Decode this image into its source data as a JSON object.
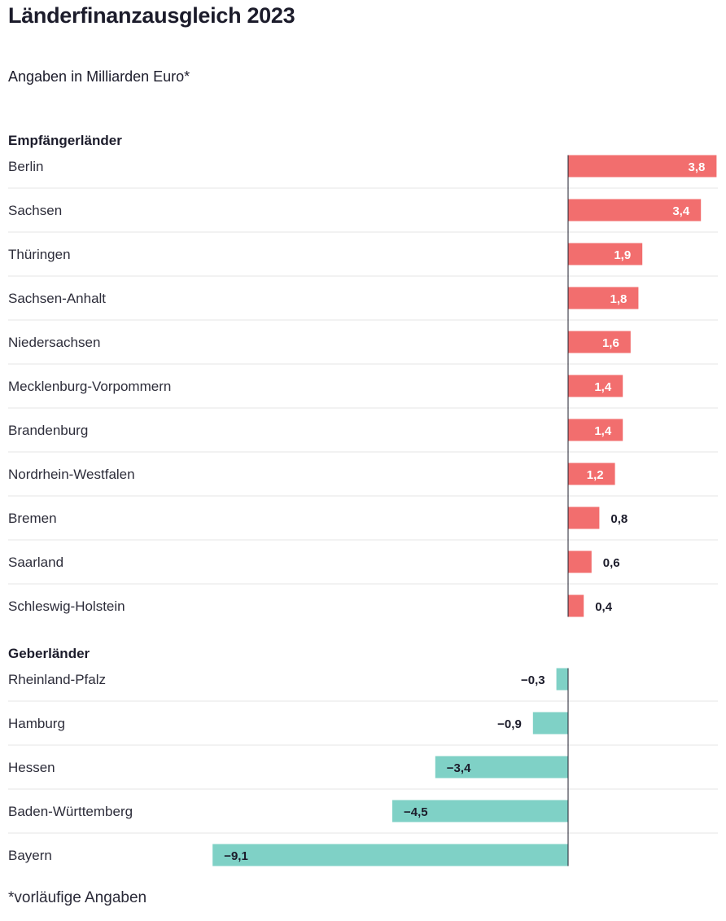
{
  "header": {
    "title": "Länderfinanzausgleich 2023",
    "subtitle": "Angaben in Milliarden Euro*",
    "footnote": "*vorläufige Angaben"
  },
  "colors": {
    "positive": "#f26e6e",
    "negative": "#7fd1c6",
    "axis": "#1c1c2b",
    "separator": "#e6e6e6"
  },
  "chart_data": {
    "type": "bar",
    "orientation": "horizontal",
    "groups": [
      {
        "name": "Empfängerländer",
        "categories": [
          "Berlin",
          "Sachsen",
          "Thüringen",
          "Sachsen-Anhalt",
          "Niedersachsen",
          "Mecklenburg-Vorpommern",
          "Brandenburg",
          "Nordrhein-Westfalen",
          "Bremen",
          "Saarland",
          "Schleswig-Holstein"
        ],
        "values": [
          3.8,
          3.4,
          1.9,
          1.8,
          1.6,
          1.4,
          1.4,
          1.2,
          0.8,
          0.6,
          0.4
        ],
        "labels": [
          "3,8",
          "3,4",
          "1,9",
          "1,8",
          "1,6",
          "1,4",
          "1,4",
          "1,2",
          "0,8",
          "0,6",
          "0,4"
        ]
      },
      {
        "name": "Geberländer",
        "categories": [
          "Rheinland-Pfalz",
          "Hamburg",
          "Hessen",
          "Baden-Württemberg",
          "Bayern"
        ],
        "values": [
          -0.3,
          -0.9,
          -3.4,
          -4.5,
          -9.1
        ],
        "labels": [
          "−0,3",
          "−0,9",
          "−3,4",
          "−4,5",
          "−9,1"
        ]
      }
    ],
    "xlim": [
      -9.1,
      3.8
    ],
    "grid": false,
    "legend": "none"
  }
}
